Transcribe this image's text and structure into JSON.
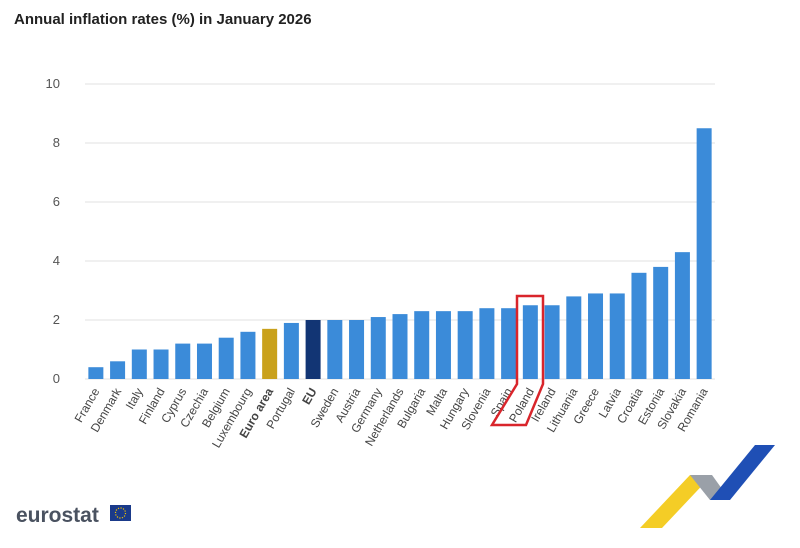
{
  "chart_data": {
    "type": "bar",
    "title": "Annual inflation rates (%) in January 2026",
    "categories": [
      "France",
      "Denmark",
      "Italy",
      "Finland",
      "Cyprus",
      "Czechia",
      "Belgium",
      "Luxembourg",
      "Euro area",
      "Portugal",
      "EU",
      "Sweden",
      "Austria",
      "Germany",
      "Netherlands",
      "Bulgaria",
      "Malta",
      "Hungary",
      "Slovenia",
      "Spain",
      "Poland",
      "Ireland",
      "Lithuania",
      "Greece",
      "Latvia",
      "Croatia",
      "Estonia",
      "Slovakia",
      "Romania"
    ],
    "values": [
      0.4,
      0.6,
      1.0,
      1.0,
      1.2,
      1.2,
      1.4,
      1.6,
      1.7,
      1.9,
      2.0,
      2.0,
      2.0,
      2.1,
      2.2,
      2.3,
      2.3,
      2.3,
      2.4,
      2.4,
      2.5,
      2.5,
      2.8,
      2.9,
      2.9,
      3.6,
      3.8,
      4.3,
      8.5
    ],
    "color": "#3b8bd9",
    "highlight_colors": {
      "Euro area": "#c9a11c",
      "EU": "#123574"
    },
    "ylim": [
      0,
      10
    ],
    "yticks": [
      0,
      2,
      4,
      6,
      8,
      10
    ],
    "grid": true,
    "logo": "eurostat"
  }
}
